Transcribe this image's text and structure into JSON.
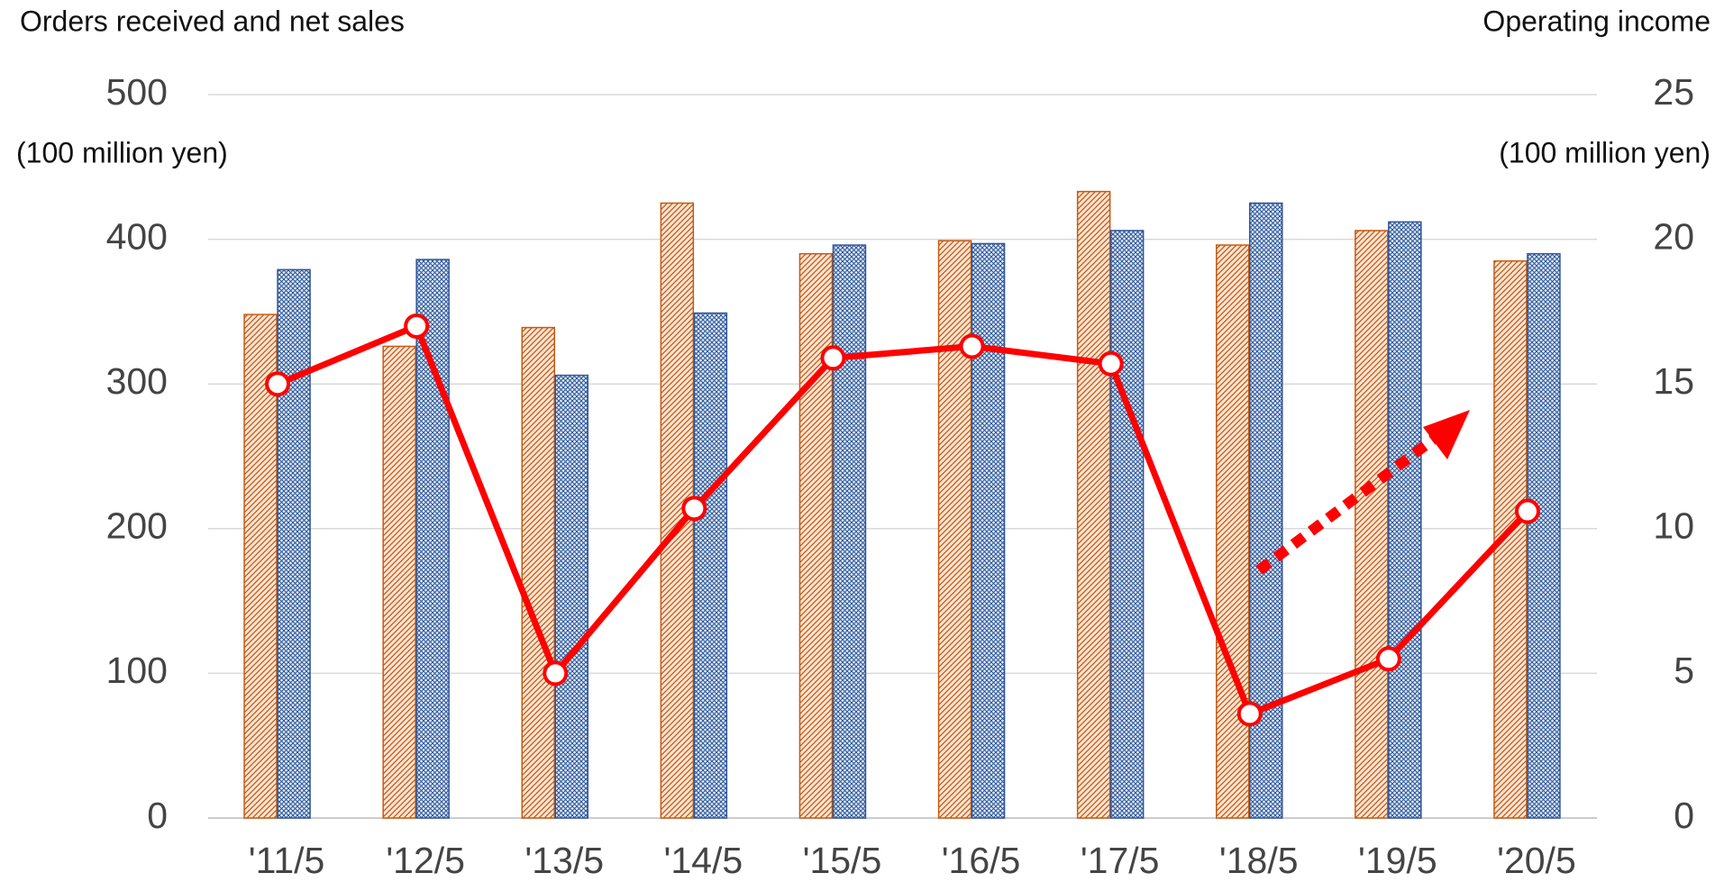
{
  "chart_data": {
    "type": "bar_line",
    "y_label": "Orders received and net sales",
    "y_unit": "(100 million yen)",
    "y2_label": "Operating income",
    "y2_unit": "(100 million yen)",
    "categories": [
      "'11/5",
      "'12/5",
      "'13/5",
      "'14/5",
      "'15/5",
      "'16/5",
      "'17/5",
      "'18/5",
      "'19/5",
      "'20/5"
    ],
    "series": [
      {
        "type": "bar",
        "color": "#c55a11",
        "values": [
          348,
          326,
          339,
          425,
          390,
          399,
          433,
          396,
          406,
          385
        ]
      },
      {
        "type": "bar",
        "color": "#2f5597",
        "values": [
          379,
          386,
          306,
          349,
          396,
          397,
          406,
          425,
          412,
          390
        ]
      },
      {
        "type": "line",
        "axis": "y2",
        "color": "#ff0000",
        "values": [
          15.0,
          17.0,
          5.0,
          10.7,
          15.9,
          16.3,
          15.7,
          3.6,
          5.5,
          10.6
        ]
      }
    ],
    "ylim": [
      0,
      500
    ],
    "yticks": [
      0,
      100,
      200,
      300,
      400,
      500
    ],
    "y2lim": [
      0,
      25
    ],
    "y2ticks": [
      0,
      5,
      10,
      15,
      20,
      25
    ],
    "grid": true
  }
}
